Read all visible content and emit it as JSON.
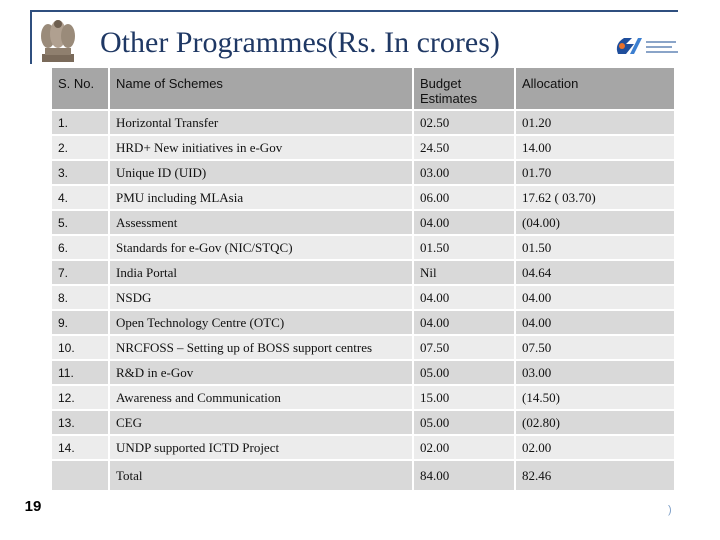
{
  "title": "Other Programmes(Rs. In crores)",
  "slide_number": "19",
  "footer_edge_text": ")",
  "icons": {
    "emblem": "national-emblem-icon",
    "logo": "egov-logo-icon"
  },
  "colors": {
    "title": "#1f3864",
    "header_bg": "#a6a6a6",
    "row_dark": "#d9d9d9",
    "row_light": "#ececec"
  },
  "table": {
    "headers": [
      "S. No.",
      "Name of Schemes",
      "Budget Estimates",
      "Allocation"
    ],
    "rows": [
      [
        "1.",
        "Horizontal Transfer",
        "02.50",
        "01.20"
      ],
      [
        "2.",
        "HRD+ New initiatives in e-Gov",
        "24.50",
        "14.00"
      ],
      [
        "3.",
        "Unique ID (UID)",
        "03.00",
        "01.70"
      ],
      [
        "4.",
        "PMU including MLAsia",
        "06.00",
        "17.62 ( 03.70)"
      ],
      [
        "5.",
        "Assessment",
        "04.00",
        "(04.00)"
      ],
      [
        "6.",
        "Standards for e-Gov (NIC/STQC)",
        "01.50",
        "01.50"
      ],
      [
        "7.",
        "India Portal",
        "Nil",
        "04.64"
      ],
      [
        "8.",
        "NSDG",
        "04.00",
        "04.00"
      ],
      [
        "9.",
        "Open Technology Centre (OTC)",
        "04.00",
        "04.00"
      ],
      [
        "10.",
        "NRCFOSS – Setting up of BOSS support centres",
        "07.50",
        "07.50"
      ],
      [
        "11.",
        "R&D in e-Gov",
        "05.00",
        "03.00"
      ],
      [
        "12.",
        "Awareness and Communication",
        "15.00",
        "(14.50)"
      ],
      [
        "13.",
        "CEG",
        "05.00",
        "(02.80)"
      ],
      [
        "14.",
        "UNDP supported ICTD Project",
        "02.00",
        "02.00"
      ]
    ],
    "total": [
      "",
      "Total",
      "84.00",
      "82.46"
    ]
  }
}
